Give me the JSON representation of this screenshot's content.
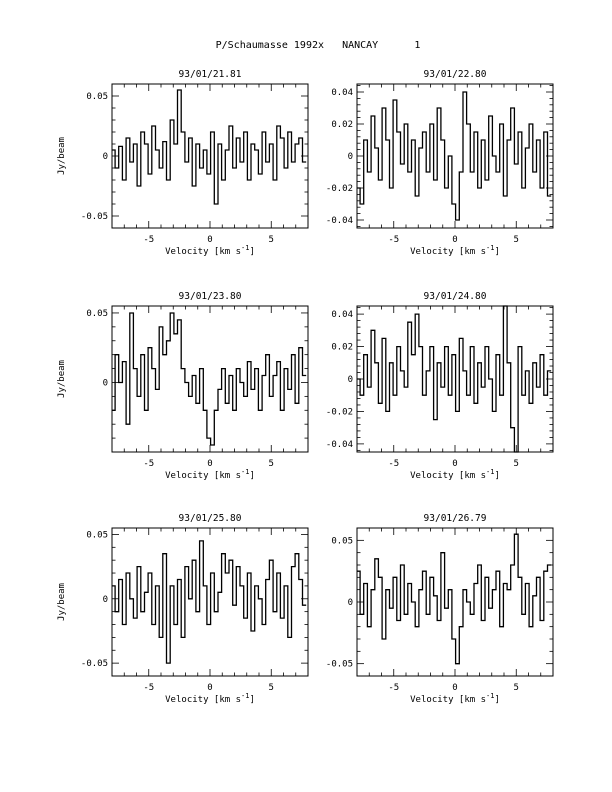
{
  "header": {
    "title": "P/Schaumasse 1992x   NANCAY      1"
  },
  "chart_data": [
    {
      "type": "line",
      "style": "step",
      "title": "93/01/21.81",
      "xlabel": "Velocity [km s^-1]",
      "ylabel": "Jy/beam",
      "xlim": [
        -8,
        8
      ],
      "ylim": [
        -0.06,
        0.06
      ],
      "xticks": [
        -5,
        0,
        5
      ],
      "xtick_labels": [
        "-5",
        "0",
        "5"
      ],
      "yticks": [
        -0.05,
        0,
        0.05
      ],
      "ytick_labels": [
        "-0.05",
        "0",
        "0.05"
      ],
      "x": [
        -7.9,
        -7.6,
        -7.3,
        -7.0,
        -6.7,
        -6.4,
        -6.1,
        -5.8,
        -5.5,
        -5.2,
        -4.9,
        -4.6,
        -4.3,
        -4.0,
        -3.7,
        -3.4,
        -3.1,
        -2.8,
        -2.5,
        -2.2,
        -1.9,
        -1.6,
        -1.3,
        -1.0,
        -0.7,
        -0.4,
        -0.1,
        0.2,
        0.5,
        0.8,
        1.1,
        1.4,
        1.7,
        2.0,
        2.3,
        2.6,
        2.9,
        3.2,
        3.5,
        3.8,
        4.1,
        4.4,
        4.7,
        5.0,
        5.3,
        5.6,
        5.9,
        6.2,
        6.5,
        6.8,
        7.1,
        7.4,
        7.7
      ],
      "y": [
        0.005,
        -0.01,
        0.008,
        -0.02,
        0.015,
        -0.005,
        0.01,
        -0.025,
        0.02,
        0.01,
        -0.015,
        0.025,
        0.005,
        -0.01,
        0.012,
        -0.02,
        0.03,
        0.01,
        0.055,
        0.02,
        -0.005,
        0.015,
        -0.025,
        0.01,
        -0.01,
        0.005,
        -0.015,
        0.02,
        -0.04,
        0.01,
        -0.02,
        0.005,
        0.025,
        -0.01,
        0.015,
        -0.005,
        0.02,
        -0.02,
        0.01,
        0.005,
        -0.015,
        0.02,
        -0.005,
        0.01,
        -0.02,
        0.025,
        0.015,
        -0.01,
        0.02,
        -0.005,
        0.01,
        0.015,
        -0.005
      ]
    },
    {
      "type": "line",
      "style": "step",
      "title": "93/01/22.80",
      "xlabel": "Velocity [km s^-1]",
      "ylabel": "",
      "xlim": [
        -8,
        8
      ],
      "ylim": [
        -0.045,
        0.045
      ],
      "xticks": [
        -5,
        0,
        5
      ],
      "xtick_labels": [
        "-5",
        "0",
        "5"
      ],
      "yticks": [
        -0.04,
        -0.02,
        0,
        0.02,
        0.04
      ],
      "ytick_labels": [
        "-0.04",
        "-0.02",
        "0",
        "0.02",
        "0.04"
      ],
      "x": [
        -7.9,
        -7.6,
        -7.3,
        -7.0,
        -6.7,
        -6.4,
        -6.1,
        -5.8,
        -5.5,
        -5.2,
        -4.9,
        -4.6,
        -4.3,
        -4.0,
        -3.7,
        -3.4,
        -3.1,
        -2.8,
        -2.5,
        -2.2,
        -1.9,
        -1.6,
        -1.3,
        -1.0,
        -0.7,
        -0.4,
        -0.1,
        0.2,
        0.5,
        0.8,
        1.1,
        1.4,
        1.7,
        2.0,
        2.3,
        2.6,
        2.9,
        3.2,
        3.5,
        3.8,
        4.1,
        4.4,
        4.7,
        5.0,
        5.3,
        5.6,
        5.9,
        6.2,
        6.5,
        6.8,
        7.1,
        7.4,
        7.7
      ],
      "y": [
        -0.02,
        -0.03,
        0.01,
        -0.01,
        0.025,
        0.005,
        -0.015,
        0.03,
        0.01,
        -0.02,
        0.035,
        0.015,
        -0.005,
        0.02,
        -0.01,
        0.01,
        -0.025,
        0.005,
        0.015,
        -0.01,
        0.02,
        -0.015,
        0.03,
        0.01,
        -0.02,
        0.0,
        -0.03,
        -0.04,
        -0.01,
        0.04,
        0.02,
        -0.01,
        0.015,
        -0.02,
        0.01,
        -0.015,
        0.025,
        0.0,
        -0.01,
        0.02,
        -0.025,
        0.01,
        0.03,
        -0.005,
        0.015,
        -0.02,
        0.005,
        0.02,
        -0.01,
        0.01,
        -0.02,
        0.015,
        -0.025
      ]
    },
    {
      "type": "line",
      "style": "step",
      "title": "93/01/23.80",
      "xlabel": "Velocity [km s^-1]",
      "ylabel": "Jy/beam",
      "xlim": [
        -8,
        8
      ],
      "ylim": [
        -0.05,
        0.055
      ],
      "xticks": [
        -5,
        0,
        5
      ],
      "xtick_labels": [
        "-5",
        "0",
        "5"
      ],
      "yticks": [
        0,
        0.05
      ],
      "ytick_labels": [
        "0",
        "0.05"
      ],
      "x": [
        -7.9,
        -7.6,
        -7.3,
        -7.0,
        -6.7,
        -6.4,
        -6.1,
        -5.8,
        -5.5,
        -5.2,
        -4.9,
        -4.6,
        -4.3,
        -4.0,
        -3.7,
        -3.4,
        -3.1,
        -2.8,
        -2.5,
        -2.2,
        -1.9,
        -1.6,
        -1.3,
        -1.0,
        -0.7,
        -0.4,
        -0.1,
        0.2,
        0.5,
        0.8,
        1.1,
        1.4,
        1.7,
        2.0,
        2.3,
        2.6,
        2.9,
        3.2,
        3.5,
        3.8,
        4.1,
        4.4,
        4.7,
        5.0,
        5.3,
        5.6,
        5.9,
        6.2,
        6.5,
        6.8,
        7.1,
        7.4,
        7.7
      ],
      "y": [
        -0.02,
        0.02,
        0.0,
        0.015,
        -0.03,
        0.05,
        0.01,
        -0.01,
        0.02,
        -0.02,
        0.025,
        0.01,
        -0.005,
        0.04,
        0.02,
        0.03,
        0.05,
        0.035,
        0.045,
        0.01,
        0.0,
        -0.01,
        0.005,
        -0.015,
        0.01,
        -0.02,
        -0.04,
        -0.045,
        -0.02,
        -0.005,
        0.01,
        -0.015,
        0.005,
        -0.02,
        0.01,
        0.0,
        -0.01,
        0.015,
        -0.005,
        0.01,
        -0.02,
        0.005,
        0.02,
        -0.01,
        0.005,
        0.015,
        -0.02,
        0.01,
        -0.005,
        0.02,
        -0.015,
        0.025,
        0.005
      ]
    },
    {
      "type": "line",
      "style": "step",
      "title": "93/01/24.80",
      "xlabel": "Velocity [km s^-1]",
      "ylabel": "",
      "xlim": [
        -8,
        8
      ],
      "ylim": [
        -0.045,
        0.045
      ],
      "xticks": [
        -5,
        0,
        5
      ],
      "xtick_labels": [
        "-5",
        "0",
        "5"
      ],
      "yticks": [
        -0.04,
        -0.02,
        0,
        0.02,
        0.04
      ],
      "ytick_labels": [
        "-0.04",
        "-0.02",
        "0",
        "0.02",
        "0.04"
      ],
      "x": [
        -7.9,
        -7.6,
        -7.3,
        -7.0,
        -6.7,
        -6.4,
        -6.1,
        -5.8,
        -5.5,
        -5.2,
        -4.9,
        -4.6,
        -4.3,
        -4.0,
        -3.7,
        -3.4,
        -3.1,
        -2.8,
        -2.5,
        -2.2,
        -1.9,
        -1.6,
        -1.3,
        -1.0,
        -0.7,
        -0.4,
        -0.1,
        0.2,
        0.5,
        0.8,
        1.1,
        1.4,
        1.7,
        2.0,
        2.3,
        2.6,
        2.9,
        3.2,
        3.5,
        3.8,
        4.1,
        4.4,
        4.7,
        5.0,
        5.3,
        5.6,
        5.9,
        6.2,
        6.5,
        6.8,
        7.1,
        7.4,
        7.7
      ],
      "y": [
        0.0,
        -0.01,
        0.015,
        -0.005,
        0.03,
        0.01,
        -0.015,
        0.025,
        -0.02,
        0.01,
        -0.01,
        0.02,
        0.005,
        -0.005,
        0.035,
        0.015,
        0.04,
        0.02,
        -0.01,
        0.005,
        0.02,
        -0.025,
        0.01,
        -0.005,
        0.02,
        -0.01,
        0.015,
        -0.02,
        0.025,
        0.005,
        -0.01,
        0.02,
        -0.015,
        0.01,
        -0.005,
        0.02,
        0.0,
        -0.02,
        0.015,
        -0.01,
        0.045,
        0.01,
        -0.03,
        -0.045,
        0.02,
        -0.01,
        0.005,
        -0.015,
        0.01,
        -0.005,
        0.015,
        -0.01,
        0.005
      ]
    },
    {
      "type": "line",
      "style": "step",
      "title": "93/01/25.80",
      "xlabel": "Velocity [km s^-1]",
      "ylabel": "Jy/beam",
      "xlim": [
        -8,
        8
      ],
      "ylim": [
        -0.06,
        0.055
      ],
      "xticks": [
        -5,
        0,
        5
      ],
      "xtick_labels": [
        "-5",
        "0",
        "5"
      ],
      "yticks": [
        -0.05,
        0,
        0.05
      ],
      "ytick_labels": [
        "-0.05",
        "0",
        "0.05"
      ],
      "x": [
        -7.9,
        -7.6,
        -7.3,
        -7.0,
        -6.7,
        -6.4,
        -6.1,
        -5.8,
        -5.5,
        -5.2,
        -4.9,
        -4.6,
        -4.3,
        -4.0,
        -3.7,
        -3.4,
        -3.1,
        -2.8,
        -2.5,
        -2.2,
        -1.9,
        -1.6,
        -1.3,
        -1.0,
        -0.7,
        -0.4,
        -0.1,
        0.2,
        0.5,
        0.8,
        1.1,
        1.4,
        1.7,
        2.0,
        2.3,
        2.6,
        2.9,
        3.2,
        3.5,
        3.8,
        4.1,
        4.4,
        4.7,
        5.0,
        5.3,
        5.6,
        5.9,
        6.2,
        6.5,
        6.8,
        7.1,
        7.4,
        7.7
      ],
      "y": [
        0.01,
        -0.01,
        0.015,
        -0.02,
        0.02,
        0.0,
        -0.015,
        0.025,
        -0.01,
        0.005,
        0.02,
        -0.02,
        0.01,
        -0.03,
        0.035,
        -0.05,
        0.01,
        -0.02,
        0.015,
        -0.03,
        0.025,
        0.0,
        0.03,
        -0.01,
        0.045,
        0.01,
        -0.02,
        0.02,
        -0.01,
        0.005,
        0.035,
        0.02,
        0.03,
        -0.005,
        0.025,
        0.01,
        -0.015,
        0.02,
        -0.025,
        0.01,
        0.0,
        -0.02,
        0.015,
        0.03,
        -0.01,
        0.02,
        -0.015,
        0.01,
        -0.03,
        0.025,
        0.035,
        0.015,
        -0.005
      ]
    },
    {
      "type": "line",
      "style": "step",
      "title": "93/01/26.79",
      "xlabel": "Velocity [km s^-1]",
      "ylabel": "",
      "xlim": [
        -8,
        8
      ],
      "ylim": [
        -0.06,
        0.06
      ],
      "xticks": [
        -5,
        0,
        5
      ],
      "xtick_labels": [
        "-5",
        "0",
        "5"
      ],
      "yticks": [
        -0.05,
        0,
        0.05
      ],
      "ytick_labels": [
        "-0.05",
        "0",
        "0.05"
      ],
      "x": [
        -7.9,
        -7.6,
        -7.3,
        -7.0,
        -6.7,
        -6.4,
        -6.1,
        -5.8,
        -5.5,
        -5.2,
        -4.9,
        -4.6,
        -4.3,
        -4.0,
        -3.7,
        -3.4,
        -3.1,
        -2.8,
        -2.5,
        -2.2,
        -1.9,
        -1.6,
        -1.3,
        -1.0,
        -0.7,
        -0.4,
        -0.1,
        0.2,
        0.5,
        0.8,
        1.1,
        1.4,
        1.7,
        2.0,
        2.3,
        2.6,
        2.9,
        3.2,
        3.5,
        3.8,
        4.1,
        4.4,
        4.7,
        5.0,
        5.3,
        5.6,
        5.9,
        6.2,
        6.5,
        6.8,
        7.1,
        7.4,
        7.7
      ],
      "y": [
        0.025,
        -0.01,
        0.015,
        -0.02,
        0.01,
        0.035,
        0.02,
        -0.03,
        0.01,
        -0.005,
        0.02,
        -0.015,
        0.03,
        -0.01,
        0.015,
        0.0,
        -0.02,
        0.01,
        0.025,
        -0.01,
        0.02,
        0.005,
        -0.015,
        0.04,
        -0.005,
        0.01,
        -0.03,
        -0.05,
        -0.02,
        0.01,
        0.0,
        -0.01,
        0.015,
        0.03,
        -0.015,
        0.02,
        -0.005,
        0.01,
        0.025,
        -0.02,
        0.015,
        0.01,
        0.03,
        0.055,
        0.02,
        -0.01,
        0.015,
        -0.02,
        0.005,
        0.02,
        -0.015,
        0.025,
        0.03
      ]
    }
  ]
}
